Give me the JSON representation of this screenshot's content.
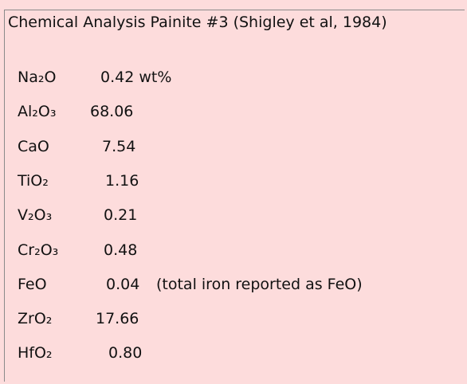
{
  "header": {
    "title": "Chemical Analysis Painite #3 (Shigley et al, 1984)"
  },
  "table": {
    "rows": [
      {
        "formula": "Na₂O",
        "value": "0.42 wt%"
      },
      {
        "formula": "Al₂O₃",
        "value": "68.06"
      },
      {
        "formula": "CaO",
        "value": "7.54"
      },
      {
        "formula": "TiO₂",
        "value": "1.16"
      },
      {
        "formula": "V₂O₃",
        "value": "0.21"
      },
      {
        "formula": "Cr₂O₃",
        "value": "0.48"
      },
      {
        "formula": "FeO",
        "value": "0.04",
        "note": "(total iron reported as FeO)"
      },
      {
        "formula": "ZrO₂",
        "value": "17.66"
      },
      {
        "formula": "HfO₂",
        "value": "0.80"
      }
    ]
  }
}
